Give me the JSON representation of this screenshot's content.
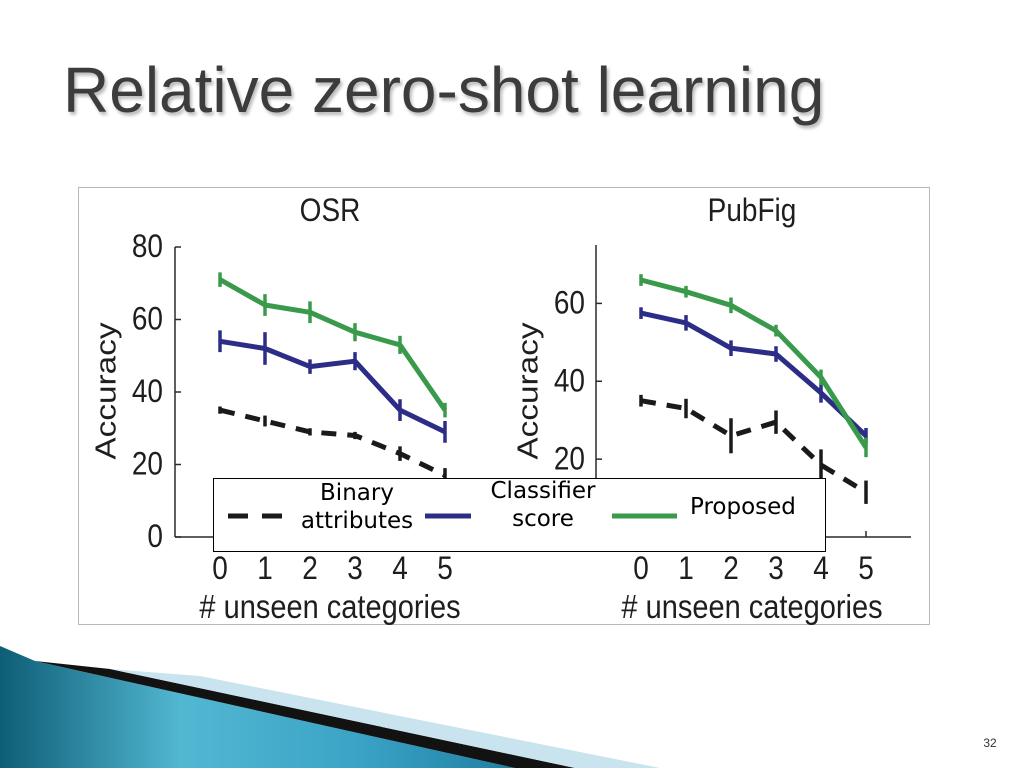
{
  "slide": {
    "title": "Relative zero-shot learning",
    "page_number": "32"
  },
  "chart_data": [
    {
      "type": "line",
      "title": "OSR",
      "xlabel": "# unseen categories",
      "ylabel": "Accuracy",
      "x": [
        0,
        1,
        2,
        3,
        4,
        5
      ],
      "xticks": [
        0,
        1,
        2,
        3,
        4,
        5
      ],
      "xlim": [
        -1,
        6
      ],
      "yticks": [
        0,
        20,
        40,
        60,
        80
      ],
      "ylim": [
        0,
        80
      ],
      "grid": false,
      "legend": "bottom",
      "series": [
        {
          "name": "Binary attributes",
          "style": "dashed",
          "color": "#1a1a1a",
          "values": [
            35,
            32,
            29,
            28,
            23,
            17
          ],
          "errors": [
            1,
            1.5,
            1,
            1,
            2,
            2
          ]
        },
        {
          "name": "Classifier score",
          "style": "solid",
          "color": "#2c2d86",
          "values": [
            54,
            52,
            47,
            48.5,
            35,
            29
          ],
          "errors": [
            3,
            4.5,
            2,
            2.5,
            3,
            3
          ]
        },
        {
          "name": "Proposed",
          "style": "solid",
          "color": "#3a9a4b",
          "values": [
            71,
            64,
            62,
            56.5,
            53,
            35
          ],
          "errors": [
            2,
            3,
            3,
            2.5,
            2.5,
            2
          ]
        }
      ]
    },
    {
      "type": "line",
      "title": "PubFig",
      "xlabel": "# unseen categories",
      "ylabel": "Accuracy",
      "x": [
        0,
        1,
        2,
        3,
        4,
        5
      ],
      "xticks": [
        0,
        1,
        2,
        3,
        4,
        5
      ],
      "xlim": [
        -1,
        6
      ],
      "yticks": [
        20,
        40,
        60
      ],
      "ylim": [
        0,
        75
      ],
      "grid": false,
      "legend": "bottom",
      "series": [
        {
          "name": "Binary attributes",
          "style": "dashed",
          "color": "#1a1a1a",
          "values": [
            35,
            33,
            26,
            29.5,
            18.5,
            11.5
          ],
          "errors": [
            1.5,
            2.5,
            4.5,
            3,
            4,
            3
          ]
        },
        {
          "name": "Classifier score",
          "style": "solid",
          "color": "#2c2d86",
          "values": [
            57.5,
            55,
            48.5,
            47,
            37,
            26
          ],
          "errors": [
            1.5,
            2,
            2,
            2,
            2.5,
            2
          ]
        },
        {
          "name": "Proposed",
          "style": "solid",
          "color": "#3a9a4b",
          "values": [
            66,
            63,
            59.5,
            53,
            41,
            23
          ],
          "errors": [
            1.5,
            1.5,
            2,
            1.5,
            2,
            2.5
          ]
        }
      ]
    }
  ]
}
